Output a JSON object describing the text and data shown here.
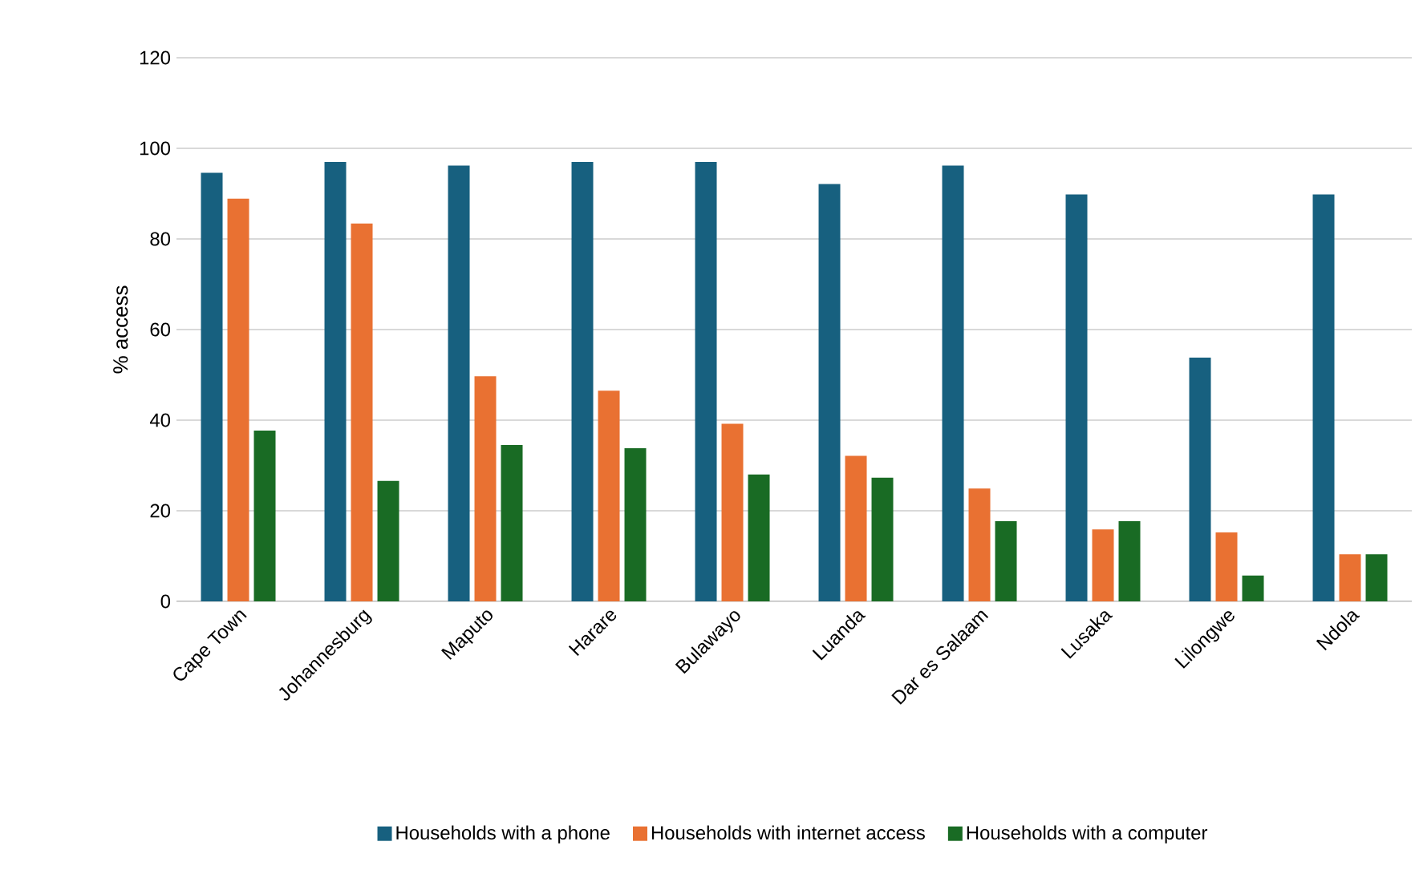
{
  "chart_data": {
    "type": "bar",
    "ylabel": "% access",
    "categories": [
      "Cape Town",
      "Johannesburg",
      "Maputo",
      "Harare",
      "Bulawayo",
      "Luanda",
      "Dar es Salaam",
      "Lusaka",
      "Lilongwe",
      "Ndola"
    ],
    "series": [
      {
        "name": "Households with a phone",
        "color": "#17607f",
        "values": [
          94.6,
          97.0,
          96.2,
          97.0,
          97.0,
          92.1,
          96.2,
          89.8,
          53.8,
          89.8
        ]
      },
      {
        "name": "Households with internet access",
        "color": "#e97132",
        "values": [
          88.9,
          83.4,
          49.7,
          46.5,
          39.2,
          32.1,
          24.9,
          15.9,
          15.2,
          10.4
        ]
      },
      {
        "name": "Households with a computer",
        "color": "#196b24",
        "values": [
          37.7,
          26.6,
          34.5,
          33.8,
          28.0,
          27.3,
          17.7,
          17.7,
          5.7,
          10.4
        ]
      }
    ],
    "ylim": [
      0,
      120
    ],
    "yticks": [
      0,
      20,
      40,
      60,
      80,
      100,
      120
    ],
    "grid": "y",
    "legend": "bottom"
  }
}
